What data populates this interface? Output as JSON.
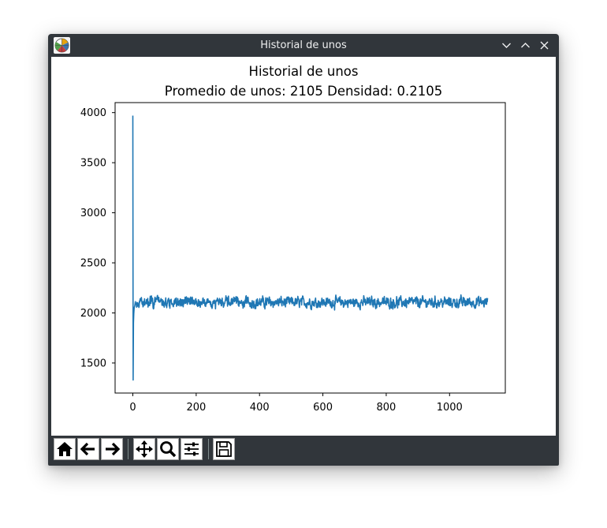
{
  "window": {
    "title": "Historial de unos"
  },
  "icons": {
    "app": "matplotlib-app-icon",
    "minimize": "chevron-down-icon",
    "maximize": "chevron-up-icon",
    "close": "close-icon",
    "home": "home-icon",
    "back": "arrow-left-icon",
    "forward": "arrow-right-icon",
    "pan": "move-icon",
    "zoom": "magnifier-icon",
    "configure": "sliders-icon",
    "save": "floppy-disk-icon"
  },
  "colors": {
    "titlebar": "#31363b",
    "line": "#1f77b4"
  },
  "chart_data": {
    "type": "line",
    "title": "Historial de unos",
    "subtitle": "Promedio de unos: 2105 Densidad: 0.2105",
    "xlabel": "",
    "ylabel": "",
    "xlim": [
      -56,
      1176
    ],
    "ylim": [
      1200,
      4100
    ],
    "xticks": [
      0,
      200,
      400,
      600,
      800,
      1000
    ],
    "xtick_labels": [
      "0",
      "200",
      "400",
      "600",
      "800",
      "1000"
    ],
    "yticks": [
      1500,
      2000,
      2500,
      3000,
      3500,
      4000
    ],
    "ytick_labels": [
      "1500",
      "2000",
      "2500",
      "3000",
      "3500",
      "4000"
    ],
    "grid": false,
    "series": [
      {
        "n_points": 1121,
        "x_start": 0,
        "x_end": 1120,
        "initial_values": [
          3970,
          1330,
          1900,
          1990,
          2040,
          2060,
          2070
        ],
        "steady_mean": 2105,
        "steady_range": [
          1960,
          2265
        ]
      }
    ]
  }
}
